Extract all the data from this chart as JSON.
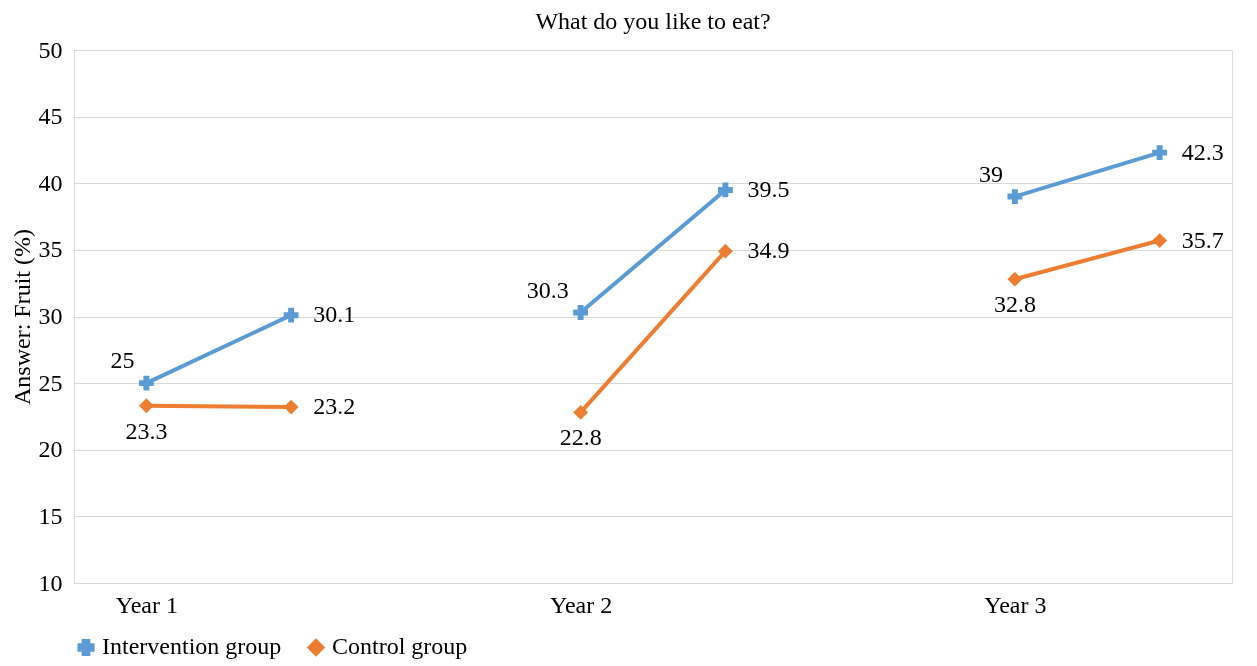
{
  "chart_data": {
    "type": "line",
    "title": "What do you like to eat?",
    "ylabel": "Answer: Fruit (%)",
    "categories": [
      "Year 1",
      null,
      null,
      "Year 2",
      null,
      null,
      "Year 3",
      null
    ],
    "series": [
      {
        "name": "Intervention group",
        "color": "#5b9bd5",
        "marker": "cross",
        "values": [
          25,
          30.1,
          null,
          30.3,
          39.5,
          null,
          39,
          42.3
        ]
      },
      {
        "name": "Control group",
        "color": "#ed7d31",
        "marker": "diamond",
        "values": [
          23.3,
          23.2,
          null,
          22.8,
          34.9,
          null,
          32.8,
          35.7
        ]
      }
    ],
    "ylim": [
      10,
      50
    ],
    "yticks": [
      10,
      15,
      20,
      25,
      30,
      35,
      40,
      45,
      50
    ],
    "grid": "y",
    "legend": "bottom",
    "data_labels": true
  }
}
